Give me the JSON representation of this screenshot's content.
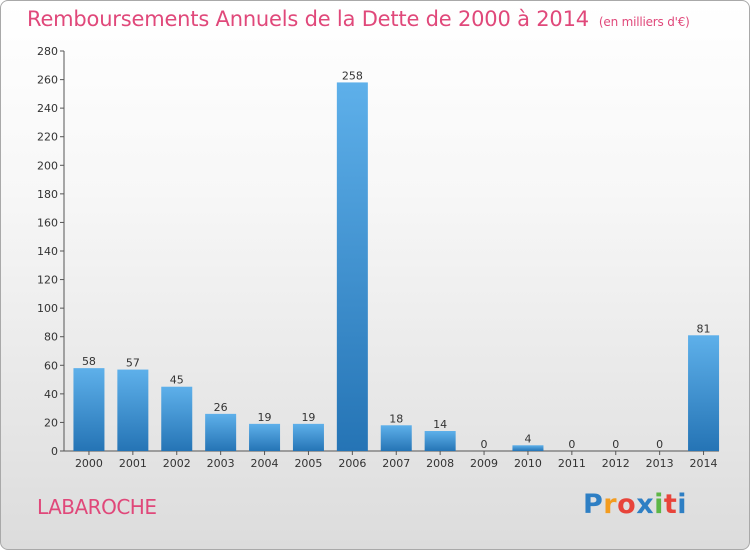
{
  "title": "Remboursements Annuels de la Dette de 2000 à 2014",
  "unit": "(en milliers d'€)",
  "commune": "LABAROCHE",
  "logo": {
    "letters": [
      "P",
      "r",
      "o",
      "x",
      "i",
      "t",
      "i"
    ]
  },
  "colors": {
    "title": "#e0487a",
    "bar_light": "#5aaae6",
    "bar_dark": "#2a7fc0"
  },
  "chart_data": {
    "type": "bar",
    "categories": [
      "2000",
      "2001",
      "2002",
      "2003",
      "2004",
      "2005",
      "2006",
      "2007",
      "2008",
      "2009",
      "2010",
      "2011",
      "2012",
      "2013",
      "2014"
    ],
    "values": [
      58,
      57,
      45,
      26,
      19,
      19,
      258,
      18,
      14,
      0,
      4,
      0,
      0,
      0,
      81
    ],
    "ylim": [
      0,
      280
    ],
    "yticks": [
      0,
      20,
      40,
      60,
      80,
      100,
      120,
      140,
      160,
      180,
      200,
      220,
      240,
      260,
      280
    ],
    "grid": false,
    "legend": "none"
  }
}
